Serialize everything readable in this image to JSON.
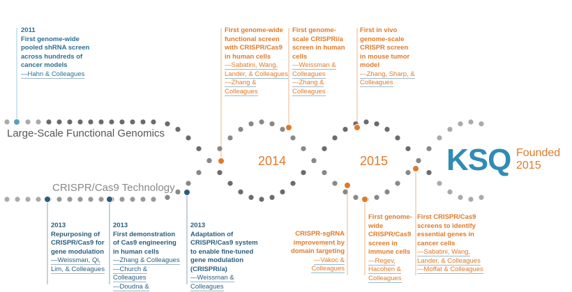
{
  "tracks": {
    "functional_genomics": "Large-Scale Functional Genomics",
    "crispr": "CRISPR/Cas9 Technology"
  },
  "years": [
    "2014",
    "2015"
  ],
  "logo": {
    "name": "KSQ",
    "founded": "Founded",
    "year": "2015"
  },
  "events": [
    {
      "year": "2011",
      "text": "First genome-wide pooled shRNA screen across hundreds of cancer models",
      "credits": [
        "—Hahn & Colleagues"
      ]
    },
    {
      "text": "First genome-wide functional screen with CRISPR/Cas9 in human cells",
      "credits": [
        "—Sabatini, Wang, Lander, & Colleagues",
        "—Zhang & Colleagues"
      ]
    },
    {
      "text": "First genome-scale CRISPRi/a screen in human cells",
      "credits": [
        "—Weissman & Colleagues",
        "—Zhang & Colleagues"
      ]
    },
    {
      "text": "First in vivo genome-scale CRISPR screen in mouse tumor model",
      "credits": [
        "—Zhang, Sharp, & Colleagues"
      ]
    },
    {
      "year": "2013",
      "text": "Repurposing of CRISPR/Cas9 for gene modulation",
      "credits": [
        "—Weissman, Qi, Lim, & Colleagues"
      ]
    },
    {
      "year": "2013",
      "text": "First demonstration of Cas9 engineering in human cells",
      "credits": [
        "—Zhang & Colleagues",
        "—Church & Colleagues",
        "—Doudna & Colleagues"
      ]
    },
    {
      "year": "2013",
      "text": "Adaptation of CRISPR/Cas9 system to enable fine-tuned gene modulation (CRISPRi/a)",
      "credits": [
        "—Weissman & Colleagues"
      ]
    },
    {
      "text": "CRISPR-sgRNA improvement by domain targeting",
      "credits": [
        "—Vakoc & Colleagues"
      ]
    },
    {
      "text": "First genome-wide CRISPR/Cas9 screen in immune cells",
      "credits": [
        "—Regev, Hacohen & Colleagues"
      ]
    },
    {
      "text": "First CRISPR/Cas9 screens to identify essential genes in cancer cells",
      "credits": [
        "—Sabatini, Wang, Lander, & Colleagues",
        "—Moffat & Colleagues"
      ]
    }
  ]
}
